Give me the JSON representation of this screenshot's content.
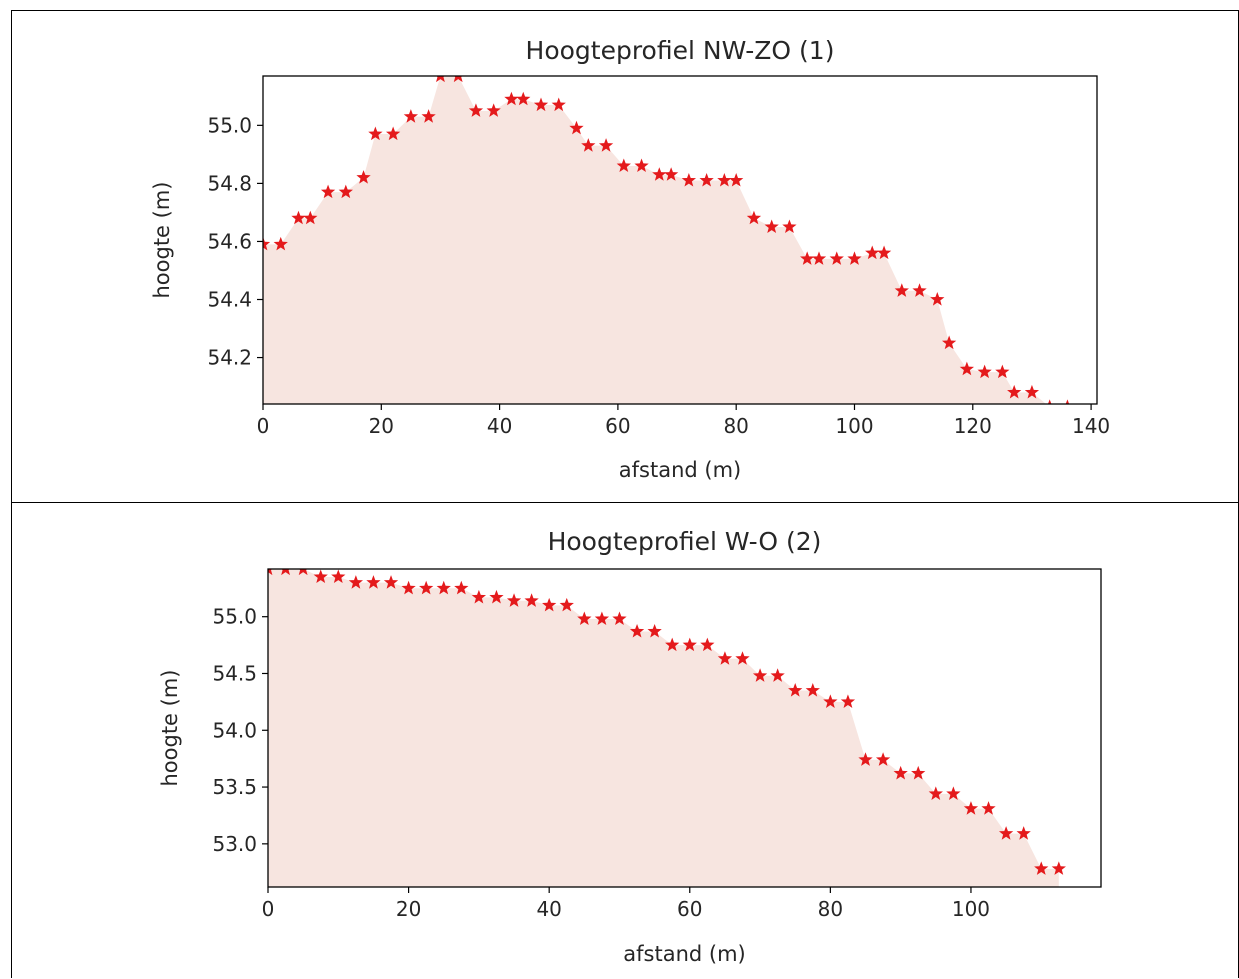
{
  "chart_data": [
    {
      "type": "area",
      "title": "Hoogteprofiel NW-ZO (1)",
      "xlabel": "afstand (m)",
      "ylabel": "hoogte (m)",
      "xlim": [
        0,
        141
      ],
      "ylim": [
        54.04,
        55.17
      ],
      "xticks": [
        "0",
        "20",
        "40",
        "60",
        "80",
        "100",
        "120",
        "140"
      ],
      "yticks": [
        "54.2",
        "54.4",
        "54.6",
        "54.8",
        "55.0"
      ],
      "x": [
        0,
        3,
        6,
        8,
        11,
        14,
        17,
        19,
        22,
        25,
        28,
        30,
        33,
        36,
        39,
        42,
        44,
        47,
        50,
        53,
        55,
        58,
        61,
        64,
        67,
        69,
        72,
        75,
        78,
        80,
        83,
        86,
        89,
        92,
        94,
        97,
        100,
        103,
        105,
        108,
        111,
        114,
        116,
        119,
        122,
        125,
        127,
        130,
        133,
        136
      ],
      "y": [
        54.59,
        54.59,
        54.68,
        54.68,
        54.77,
        54.77,
        54.82,
        54.97,
        54.97,
        55.03,
        55.03,
        55.17,
        55.17,
        55.05,
        55.05,
        55.09,
        55.09,
        55.07,
        55.07,
        54.99,
        54.93,
        54.93,
        54.86,
        54.86,
        54.83,
        54.83,
        54.81,
        54.81,
        54.81,
        54.81,
        54.68,
        54.65,
        54.65,
        54.54,
        54.54,
        54.54,
        54.54,
        54.56,
        54.56,
        54.43,
        54.43,
        54.4,
        54.25,
        54.16,
        54.15,
        54.15,
        54.08,
        54.08,
        54.03,
        54.03
      ],
      "style": {
        "marker": "star",
        "marker_color": "#e41a1c",
        "fill_color": "#f7e5e0"
      }
    },
    {
      "type": "area",
      "title": "Hoogteprofiel W-O (2)",
      "xlabel": "afstand (m)",
      "ylabel": "hoogte (m)",
      "xlim": [
        0,
        118.5
      ],
      "ylim": [
        52.62,
        55.42
      ],
      "xticks": [
        "0",
        "20",
        "40",
        "60",
        "80",
        "100"
      ],
      "yticks": [
        "53.0",
        "53.5",
        "54.0",
        "54.5",
        "55.0"
      ],
      "x": [
        0,
        2.5,
        5,
        7.5,
        10,
        12.5,
        15,
        17.5,
        20,
        22.5,
        25,
        27.5,
        30,
        32.5,
        35,
        37.5,
        40,
        42.5,
        45,
        47.5,
        50,
        52.5,
        55,
        57.5,
        60,
        62.5,
        65,
        67.5,
        70,
        72.5,
        75,
        77.5,
        80,
        82.5,
        85,
        87.5,
        90,
        92.5,
        95,
        97.5,
        100,
        102.5,
        105,
        107.5,
        110,
        112.5
      ],
      "y": [
        55.42,
        55.42,
        55.42,
        55.35,
        55.35,
        55.3,
        55.3,
        55.3,
        55.25,
        55.25,
        55.25,
        55.25,
        55.17,
        55.17,
        55.14,
        55.14,
        55.1,
        55.1,
        54.98,
        54.98,
        54.98,
        54.87,
        54.87,
        54.75,
        54.75,
        54.75,
        54.63,
        54.63,
        54.48,
        54.48,
        54.35,
        54.35,
        54.25,
        54.25,
        53.74,
        53.74,
        53.62,
        53.62,
        53.44,
        53.44,
        53.31,
        53.31,
        53.09,
        53.09,
        52.78,
        52.78
      ],
      "style": {
        "marker": "star",
        "marker_color": "#e41a1c",
        "fill_color": "#f7e5e0"
      }
    }
  ]
}
